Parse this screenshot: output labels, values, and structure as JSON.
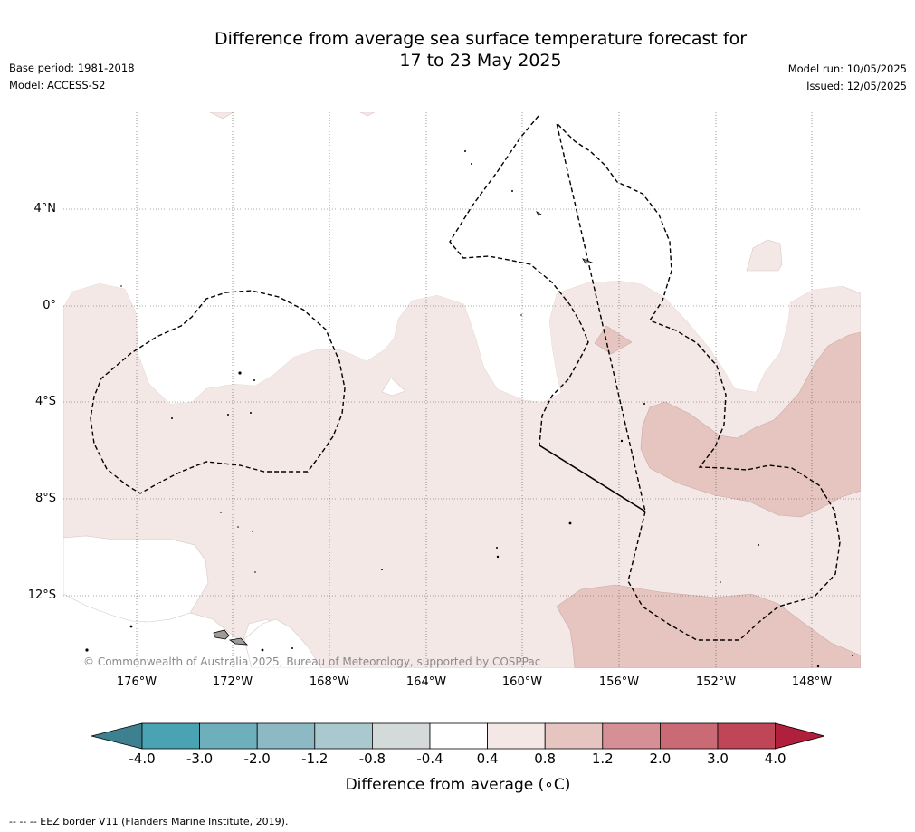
{
  "title": {
    "line1": "Difference from average sea surface temperature forecast for",
    "line2": "17 to 23 May 2025"
  },
  "meta_left": {
    "base_period": "Base period: 1981-2018",
    "model": "Model: ACCESS-S2"
  },
  "meta_right": {
    "model_run": "Model run: 10/05/2025",
    "issued": "Issued: 12/05/2025"
  },
  "map": {
    "latitude_labels": [
      "4°N",
      "0°",
      "4°S",
      "8°S",
      "12°S"
    ],
    "longitude_labels": [
      "176°W",
      "172°W",
      "168°W",
      "164°W",
      "160°W",
      "156°W",
      "152°W",
      "148°W"
    ],
    "copyright": "© Commonwealth of Australia 2025, Bureau of Meteorology, supported by COSPPac"
  },
  "colorbar": {
    "ticks": [
      "-4.0",
      "-3.0",
      "-2.0",
      "-1.2",
      "-0.8",
      "-0.4",
      "0.4",
      "0.8",
      "1.2",
      "2.0",
      "3.0",
      "4.0"
    ],
    "label": "Difference from average (∘C)",
    "colors": {
      "below": "#3d8190",
      "bins": [
        "#4aa3b3",
        "#6eafbc",
        "#8cb9c4",
        "#a9c9cf",
        "#d4d9d9",
        "#ffffff",
        "#f4e8e6",
        "#e6c5c0",
        "#d68f95",
        "#ca6a74",
        "#bf4656"
      ],
      "above": "#b01f3c"
    }
  },
  "map_colors": {
    "light_warm": "#f4e8e6",
    "warm": "#e6c5c0",
    "neutral": "#ffffff"
  },
  "footnote": "-- -- -- EEZ border V11 (Flanders Marine Institute, 2019)."
}
